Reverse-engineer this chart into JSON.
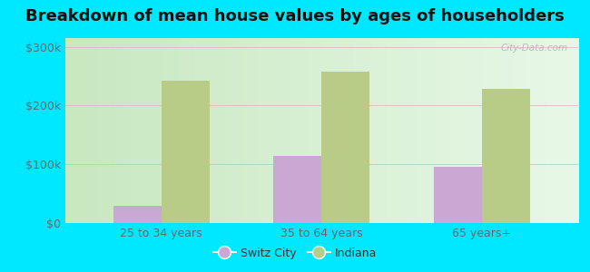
{
  "title": "Breakdown of mean house values by ages of householders",
  "categories": [
    "25 to 34 years",
    "35 to 64 years",
    "65 years+"
  ],
  "switz_city": [
    30000,
    115000,
    95000
  ],
  "indiana": [
    242000,
    258000,
    228000
  ],
  "bar_color_city": "#c9a8d4",
  "bar_color_indiana": "#b8cc88",
  "background_outer": "#00e8ff",
  "yticks": [
    0,
    100000,
    200000,
    300000
  ],
  "ytick_labels": [
    "$0",
    "$100k",
    "$200k",
    "$300k"
  ],
  "ylim": [
    0,
    315000
  ],
  "legend_labels": [
    "Switz City",
    "Indiana"
  ],
  "title_fontsize": 13,
  "tick_fontsize": 9,
  "legend_fontsize": 9,
  "grid_color": "#e0b8c8",
  "grad_top": "#c8e8c0",
  "grad_bottom": "#e8f8e8",
  "grad_right": "#d0ecc8",
  "watermark": "City-Data.com"
}
